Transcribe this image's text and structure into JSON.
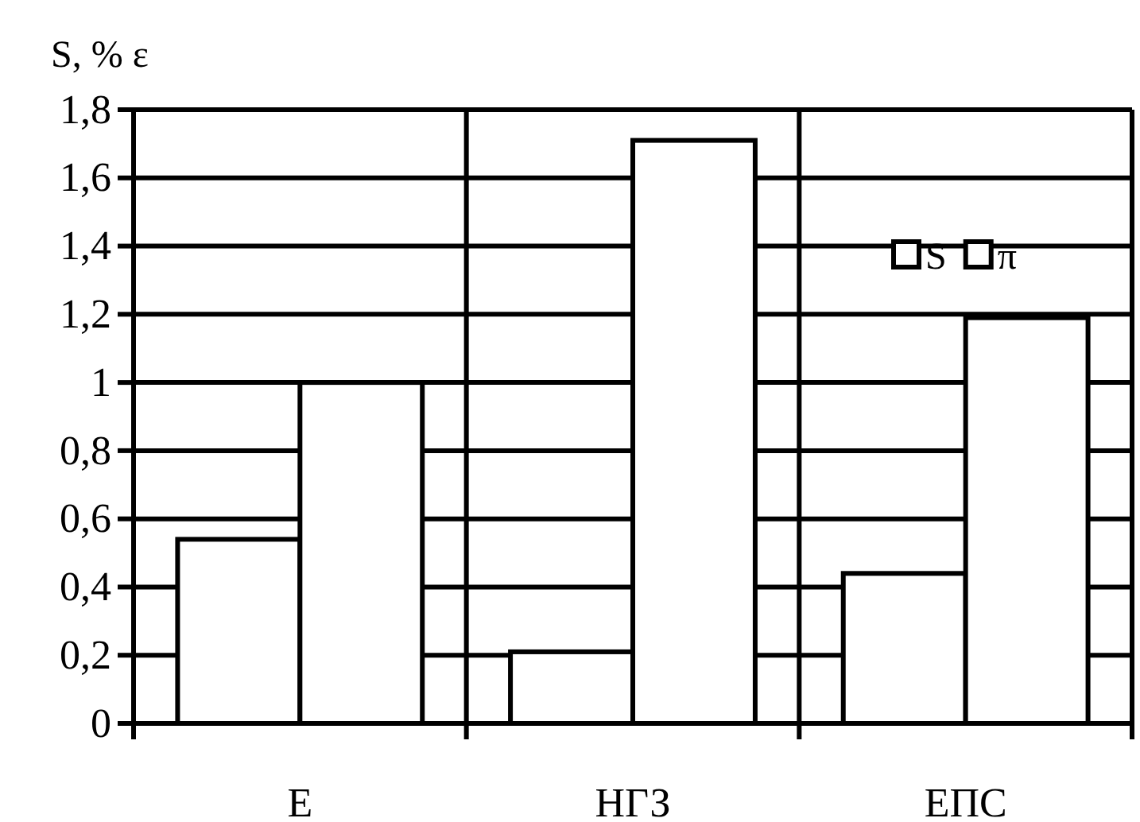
{
  "chart_data": {
    "type": "bar",
    "ylabel": "S, %   ε",
    "categories": [
      "Е",
      "НГЗ",
      "ЕПС"
    ],
    "series": [
      {
        "name": "S",
        "color": "#ffffff",
        "values": [
          0.54,
          0.21,
          0.44
        ]
      },
      {
        "name": "π",
        "color": "#ffffff",
        "values": [
          1.0,
          1.71,
          1.19
        ]
      }
    ],
    "ylim": [
      0,
      1.8
    ],
    "yticks": [
      0,
      {
        "value": 0.2,
        "label": "0,2"
      },
      {
        "value": 0.4,
        "label": "0,4"
      },
      {
        "value": 0.6,
        "label": "0,6"
      },
      {
        "value": 0.8,
        "label": "0,8"
      },
      1,
      {
        "value": 1.2,
        "label": "1,2"
      },
      {
        "value": 1.4,
        "label": "1,4"
      },
      {
        "value": 1.6,
        "label": "1,6"
      },
      {
        "value": 1.8,
        "label": "1,8"
      }
    ],
    "grid": true,
    "legend": "top right"
  }
}
